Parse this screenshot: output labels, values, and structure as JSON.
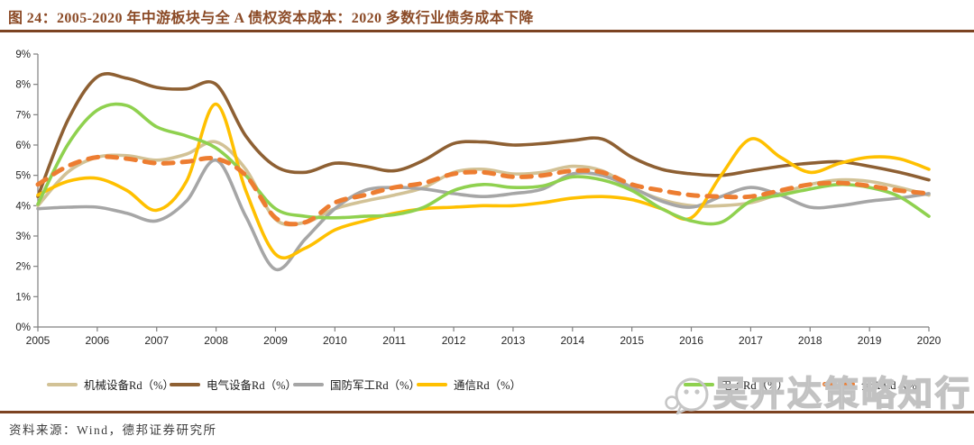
{
  "figure": {
    "title": "图 24：2005-2020 年中游板块与全 A 债权资本成本：2020 多数行业债务成本下降",
    "source": "资料来源：Wind，德邦证券研究所"
  },
  "watermark": {
    "text": "吴开达策略知行",
    "icon": "chat-bubbles-icon"
  },
  "colors": {
    "title_text": "#8B4A26",
    "divider": "#7C4322",
    "axis": "#808080",
    "tick_label": "#262626",
    "watermark": "#c2c2c2"
  },
  "chart_data": {
    "type": "line",
    "title": "2005-2020 年中游板块与全 A 债权资本成本",
    "xlabel": "",
    "ylabel": "",
    "xlim": [
      2005,
      2020
    ],
    "ylim": [
      0,
      9
    ],
    "grid": false,
    "legend_position": "bottom",
    "x_tick_labels": [
      "2005",
      "2006",
      "2007",
      "2008",
      "2009",
      "2010",
      "2011",
      "2012",
      "2013",
      "2014",
      "2015",
      "2016",
      "2017",
      "2018",
      "2019",
      "2020"
    ],
    "y_tick_labels": [
      "0%",
      "1%",
      "2%",
      "3%",
      "4%",
      "5%",
      "6%",
      "7%",
      "8%",
      "9%"
    ],
    "x": [
      2005,
      2005.5,
      2006,
      2006.5,
      2007,
      2007.5,
      2008,
      2008.5,
      2009,
      2009.5,
      2010,
      2010.5,
      2011,
      2011.5,
      2012,
      2012.5,
      2013,
      2013.5,
      2014,
      2014.5,
      2015,
      2015.5,
      2016,
      2016.5,
      2017,
      2017.5,
      2018,
      2018.5,
      2019,
      2019.5,
      2020
    ],
    "series": [
      {
        "name": "机械设备Rd（%）",
        "key": "jixie-shebei",
        "color": "#D2C296",
        "dash": false,
        "values": [
          4.0,
          5.1,
          5.6,
          5.65,
          5.5,
          5.7,
          6.1,
          5.2,
          3.55,
          3.45,
          3.9,
          4.15,
          4.35,
          4.6,
          5.1,
          5.2,
          5.05,
          5.1,
          5.3,
          5.15,
          4.6,
          4.2,
          4.0,
          4.0,
          4.1,
          4.4,
          4.7,
          4.85,
          4.8,
          4.6,
          4.35
        ]
      },
      {
        "name": "电气设备Rd（%）",
        "key": "dianqi-shebei",
        "color": "#8E6033",
        "dash": false,
        "values": [
          4.3,
          6.8,
          8.25,
          8.2,
          7.9,
          7.85,
          8.0,
          6.3,
          5.3,
          5.1,
          5.4,
          5.3,
          5.15,
          5.5,
          6.05,
          6.1,
          6.0,
          6.05,
          6.15,
          6.2,
          5.6,
          5.2,
          5.05,
          5.0,
          5.15,
          5.3,
          5.4,
          5.45,
          5.3,
          5.1,
          4.85
        ]
      },
      {
        "name": "国防军工Rd（%）",
        "key": "guofang-jungong",
        "color": "#A6A6A6",
        "dash": false,
        "values": [
          3.9,
          3.95,
          3.95,
          3.75,
          3.5,
          4.15,
          5.5,
          3.65,
          1.9,
          2.9,
          3.9,
          4.5,
          4.6,
          4.55,
          4.4,
          4.3,
          4.4,
          4.55,
          5.05,
          5.0,
          4.6,
          4.15,
          3.95,
          4.3,
          4.6,
          4.35,
          3.95,
          4.0,
          4.15,
          4.25,
          4.4
        ]
      },
      {
        "name": "通信Rd（%）",
        "key": "tongxin",
        "color": "#FFC000",
        "dash": false,
        "values": [
          4.35,
          4.8,
          4.9,
          4.5,
          3.85,
          4.8,
          7.35,
          4.5,
          2.4,
          2.6,
          3.2,
          3.5,
          3.75,
          3.9,
          3.95,
          4.0,
          4.0,
          4.1,
          4.25,
          4.3,
          4.2,
          3.9,
          3.6,
          5.0,
          6.2,
          5.6,
          5.1,
          5.4,
          5.6,
          5.55,
          5.2
        ]
      },
      {
        "name": "电子Rd（%）",
        "key": "dianzi",
        "color": "#8FD14F",
        "dash": false,
        "values": [
          4.05,
          6.0,
          7.15,
          7.3,
          6.6,
          6.3,
          5.9,
          5.0,
          3.9,
          3.65,
          3.6,
          3.65,
          3.7,
          3.95,
          4.5,
          4.7,
          4.6,
          4.65,
          4.95,
          4.85,
          4.5,
          3.9,
          3.5,
          3.45,
          4.15,
          4.35,
          4.55,
          4.7,
          4.6,
          4.3,
          3.65
        ]
      },
      {
        "name": "全A Rd（%）",
        "key": "quan-a",
        "color": "#ED7D31",
        "dash": true,
        "values": [
          4.7,
          5.3,
          5.6,
          5.55,
          5.4,
          5.45,
          5.55,
          5.0,
          3.6,
          3.45,
          4.1,
          4.35,
          4.6,
          4.75,
          5.05,
          5.1,
          4.95,
          5.0,
          5.15,
          5.1,
          4.7,
          4.5,
          4.35,
          4.3,
          4.3,
          4.5,
          4.7,
          4.75,
          4.65,
          4.5,
          4.4
        ]
      }
    ]
  }
}
